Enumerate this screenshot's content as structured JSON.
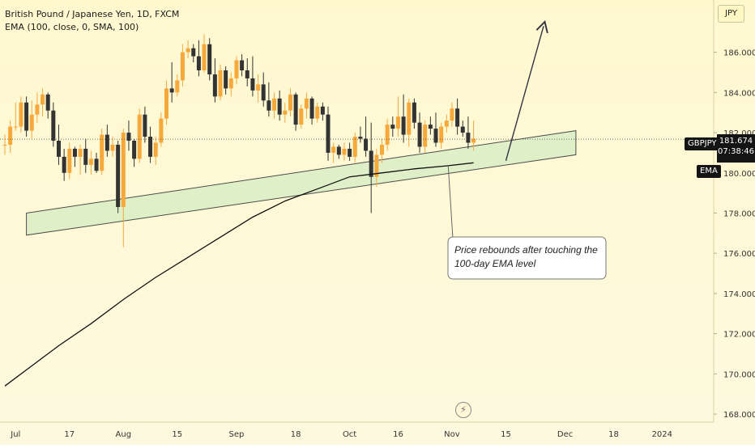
{
  "header": {
    "title": "British Pound / Japanese Yen, 1D, FXCM",
    "indicator": "EMA (100, close, 0, SMA, 100)"
  },
  "currency_label": "JPY",
  "tags": {
    "symbol": "GBPJPY",
    "last_price": "181.674",
    "countdown": "07:38:46",
    "ema": "EMA"
  },
  "annotation": {
    "line1": "Price rebounds after touching the",
    "line2": "100-day EMA level"
  },
  "colors": {
    "bg_top": "#fff8cf",
    "bg_bottom": "#fdf9df",
    "candle_up": "#f7a83b",
    "candle_down": "#333333",
    "channel_fill": "#d9efc6",
    "ema_line": "#111111"
  },
  "chart_data": {
    "type": "candlestick",
    "title": "British Pound / Japanese Yen, 1D, FXCM",
    "ylim": [
      167.6,
      188.6
    ],
    "y_ticks": [
      168,
      170,
      172,
      174,
      176,
      178,
      180,
      182,
      184,
      186
    ],
    "x_ticks": [
      "Jul",
      "17",
      "Aug",
      "15",
      "Sep",
      "18",
      "Oct",
      "16",
      "Nov",
      "15",
      "Dec",
      "18",
      "2024"
    ],
    "x_tick_index": [
      2,
      12,
      22,
      32,
      43,
      54,
      64,
      73,
      83,
      93,
      104,
      113,
      122
    ],
    "candles": [
      [
        181.4,
        181.9,
        180.9,
        181.4
      ],
      [
        181.4,
        182.6,
        181.0,
        182.3
      ],
      [
        182.3,
        183.5,
        182.1,
        182.3
      ],
      [
        182.3,
        183.8,
        182.0,
        183.5
      ],
      [
        183.5,
        183.8,
        181.8,
        182.1
      ],
      [
        182.1,
        183.6,
        181.7,
        182.9
      ],
      [
        182.9,
        184.0,
        182.5,
        183.4
      ],
      [
        183.4,
        184.2,
        182.8,
        183.9
      ],
      [
        183.9,
        184.0,
        182.7,
        183.1
      ],
      [
        183.1,
        183.5,
        181.3,
        181.6
      ],
      [
        181.6,
        182.4,
        180.4,
        180.8
      ],
      [
        180.8,
        181.2,
        179.6,
        180.0
      ],
      [
        180.0,
        181.5,
        179.7,
        181.2
      ],
      [
        181.2,
        181.3,
        180.3,
        180.8
      ],
      [
        180.8,
        181.4,
        179.9,
        181.2
      ],
      [
        181.2,
        181.7,
        180.0,
        180.4
      ],
      [
        180.4,
        181.1,
        179.9,
        180.7
      ],
      [
        180.7,
        181.0,
        180.0,
        180.1
      ],
      [
        180.1,
        182.2,
        179.9,
        181.9
      ],
      [
        181.9,
        182.4,
        180.8,
        181.1
      ],
      [
        181.1,
        181.8,
        180.8,
        181.4
      ],
      [
        181.4,
        181.6,
        178.0,
        178.3
      ],
      [
        178.3,
        182.2,
        176.3,
        182.0
      ],
      [
        182.0,
        182.6,
        181.1,
        181.6
      ],
      [
        181.6,
        181.7,
        180.3,
        180.7
      ],
      [
        180.7,
        183.2,
        180.5,
        182.9
      ],
      [
        182.9,
        183.3,
        181.5,
        181.8
      ],
      [
        181.8,
        182.3,
        180.5,
        180.8
      ],
      [
        180.8,
        181.8,
        180.4,
        181.5
      ],
      [
        181.5,
        183.0,
        181.3,
        182.7
      ],
      [
        182.7,
        184.6,
        182.4,
        184.2
      ],
      [
        184.2,
        185.5,
        183.5,
        184.0
      ],
      [
        184.0,
        184.9,
        183.8,
        184.6
      ],
      [
        184.6,
        186.4,
        184.3,
        186.0
      ],
      [
        186.0,
        186.6,
        185.7,
        186.2
      ],
      [
        186.2,
        186.4,
        185.5,
        185.8
      ],
      [
        185.8,
        186.6,
        184.8,
        185.1
      ],
      [
        185.1,
        186.9,
        185.0,
        186.4
      ],
      [
        186.4,
        186.7,
        184.6,
        184.9
      ],
      [
        184.9,
        185.7,
        183.5,
        183.8
      ],
      [
        183.8,
        185.4,
        183.6,
        185.1
      ],
      [
        185.1,
        185.3,
        183.9,
        184.2
      ],
      [
        184.2,
        185.0,
        183.8,
        184.7
      ],
      [
        184.7,
        185.8,
        184.4,
        185.6
      ],
      [
        185.6,
        185.9,
        184.8,
        185.1
      ],
      [
        185.1,
        185.7,
        184.3,
        184.7
      ],
      [
        184.7,
        185.8,
        183.8,
        184.1
      ],
      [
        184.1,
        184.9,
        183.5,
        184.4
      ],
      [
        184.4,
        185.0,
        183.3,
        183.6
      ],
      [
        183.6,
        184.5,
        182.8,
        183.1
      ],
      [
        183.1,
        184.0,
        182.7,
        183.7
      ],
      [
        183.7,
        184.1,
        182.6,
        182.9
      ],
      [
        182.9,
        183.5,
        182.5,
        183.1
      ],
      [
        183.1,
        184.2,
        182.8,
        183.9
      ],
      [
        183.9,
        184.0,
        182.1,
        182.4
      ],
      [
        182.4,
        183.4,
        182.2,
        183.2
      ],
      [
        183.2,
        184.0,
        182.7,
        183.7
      ],
      [
        183.7,
        183.8,
        182.4,
        182.7
      ],
      [
        182.7,
        183.5,
        182.5,
        183.3
      ],
      [
        183.3,
        183.5,
        182.6,
        182.9
      ],
      [
        182.9,
        183.3,
        180.6,
        181.0
      ],
      [
        181.0,
        181.5,
        180.5,
        181.3
      ],
      [
        181.3,
        181.4,
        180.7,
        180.9
      ],
      [
        180.9,
        181.5,
        180.6,
        181.2
      ],
      [
        181.2,
        181.5,
        180.6,
        180.8
      ],
      [
        180.8,
        182.0,
        180.5,
        181.8
      ],
      [
        181.8,
        182.3,
        181.5,
        181.7
      ],
      [
        181.7,
        182.8,
        180.8,
        181.1
      ],
      [
        181.1,
        182.5,
        178.0,
        179.8
      ],
      [
        179.8,
        181.2,
        179.3,
        180.9
      ],
      [
        180.9,
        181.7,
        180.5,
        181.4
      ],
      [
        181.4,
        182.7,
        181.1,
        182.4
      ],
      [
        182.4,
        182.8,
        181.8,
        182.2
      ],
      [
        182.2,
        183.8,
        181.8,
        182.8
      ],
      [
        182.8,
        183.9,
        181.5,
        181.9
      ],
      [
        181.9,
        183.7,
        181.3,
        183.5
      ],
      [
        183.5,
        183.7,
        182.2,
        182.5
      ],
      [
        182.5,
        183.0,
        181.0,
        181.3
      ],
      [
        181.3,
        182.6,
        181.0,
        182.4
      ],
      [
        182.4,
        182.8,
        181.9,
        182.2
      ],
      [
        182.2,
        183.0,
        181.3,
        181.5
      ],
      [
        181.5,
        182.5,
        181.2,
        182.3
      ],
      [
        182.3,
        182.9,
        182.0,
        182.6
      ],
      [
        182.6,
        183.5,
        182.3,
        183.2
      ],
      [
        183.2,
        183.7,
        181.9,
        182.3
      ],
      [
        182.3,
        182.6,
        181.8,
        182.0
      ],
      [
        182.0,
        182.8,
        181.2,
        181.5
      ],
      [
        181.5,
        182.6,
        181.1,
        181.7
      ]
    ],
    "ema_100": [
      [
        0,
        169.4
      ],
      [
        5,
        170.4
      ],
      [
        10,
        171.4
      ],
      [
        16,
        172.5
      ],
      [
        22,
        173.7
      ],
      [
        28,
        174.8
      ],
      [
        34,
        175.8
      ],
      [
        40,
        176.8
      ],
      [
        46,
        177.8
      ],
      [
        52,
        178.6
      ],
      [
        58,
        179.2
      ],
      [
        64,
        179.8
      ],
      [
        70,
        180.0
      ],
      [
        76,
        180.2
      ],
      [
        82,
        180.35
      ],
      [
        87,
        180.5
      ]
    ],
    "channel": {
      "upper": [
        [
          4,
          178.0
        ],
        [
          106,
          182.1
        ]
      ],
      "lower": [
        [
          4,
          176.9
        ],
        [
          106,
          180.9
        ]
      ]
    },
    "last_price": 181.674,
    "projection": {
      "from": [
        93,
        180.6
      ],
      "to": [
        100,
        187.3
      ]
    }
  }
}
